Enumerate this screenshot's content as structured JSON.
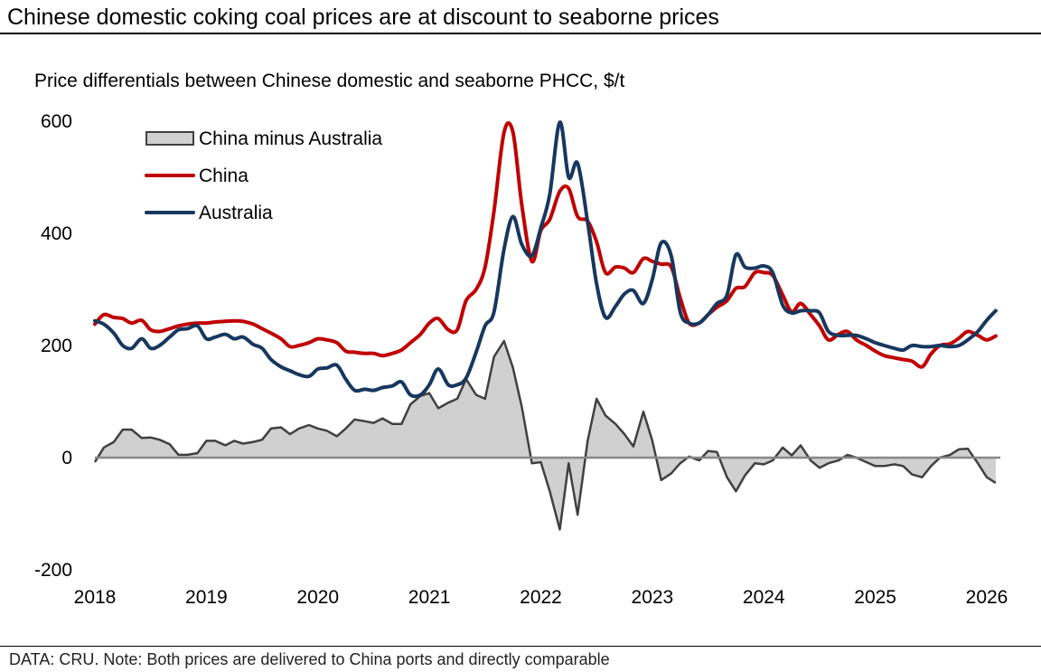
{
  "title": "Chinese domestic coking coal prices are at discount to seaborne prices",
  "footer": "DATA: CRU. Note: Both prices are delivered to China ports and directly comparable",
  "chart_data": {
    "type": "line",
    "subtitle": "Price differentials between Chinese domestic and seaborne PHCC, $/t",
    "xlabel": "",
    "ylabel": "$/t",
    "xlim": [
      2018,
      2026.2
    ],
    "ylim": [
      -200,
      600
    ],
    "yticks": [
      600,
      400,
      200,
      0,
      -200
    ],
    "xticks": [
      2018,
      2019,
      2020,
      2021,
      2022,
      2023,
      2024,
      2025,
      2026
    ],
    "grid": false,
    "legend_position": "top-left",
    "colors": {
      "china": "#c00000",
      "australia": "#17375e",
      "diff_fill": "#d0d0d0",
      "diff_line": "#404040",
      "zero_line": "#888888"
    },
    "series": [
      {
        "name": "China minus Australia",
        "kind": "area",
        "x": [
          2018.0,
          2018.08,
          2018.17,
          2018.25,
          2018.33,
          2018.42,
          2018.5,
          2018.58,
          2018.67,
          2018.75,
          2018.83,
          2018.92,
          2019.0,
          2019.08,
          2019.17,
          2019.25,
          2019.33,
          2019.42,
          2019.5,
          2019.58,
          2019.67,
          2019.75,
          2019.83,
          2019.92,
          2020.0,
          2020.08,
          2020.17,
          2020.25,
          2020.33,
          2020.42,
          2020.5,
          2020.58,
          2020.67,
          2020.75,
          2020.83,
          2020.92,
          2021.0,
          2021.08,
          2021.17,
          2021.25,
          2021.33,
          2021.42,
          2021.5,
          2021.58,
          2021.67,
          2021.75,
          2021.83,
          2021.92,
          2022.0,
          2022.08,
          2022.17,
          2022.25,
          2022.33,
          2022.42,
          2022.5,
          2022.58,
          2022.67,
          2022.75,
          2022.83,
          2022.92,
          2023.0,
          2023.08,
          2023.17,
          2023.25,
          2023.33,
          2023.42,
          2023.5,
          2023.58,
          2023.67,
          2023.75,
          2023.83,
          2023.92,
          2024.0,
          2024.08,
          2024.17,
          2024.25,
          2024.33,
          2024.42,
          2024.5,
          2024.58,
          2024.67,
          2024.75,
          2024.83,
          2024.92,
          2025.0,
          2025.08,
          2025.17,
          2025.25,
          2025.33,
          2025.42,
          2025.5,
          2025.58,
          2025.67,
          2025.75,
          2025.83,
          2025.92,
          2026.0,
          2026.08
        ],
        "values": [
          -8,
          18,
          28,
          50,
          50,
          35,
          36,
          32,
          24,
          5,
          5,
          8,
          30,
          30,
          22,
          30,
          25,
          28,
          32,
          52,
          54,
          42,
          52,
          58,
          52,
          48,
          38,
          52,
          68,
          65,
          62,
          70,
          60,
          60,
          95,
          110,
          115,
          88,
          98,
          105,
          140,
          112,
          105,
          180,
          208,
          160,
          90,
          -10,
          -8,
          -60,
          -128,
          -10,
          -102,
          30,
          105,
          75,
          60,
          42,
          20,
          82,
          30,
          -40,
          -28,
          -10,
          2,
          -5,
          12,
          10,
          -35,
          -60,
          -32,
          -10,
          -12,
          -5,
          18,
          4,
          22,
          -5,
          -18,
          -10,
          -5,
          5,
          0,
          -8,
          -15,
          -15,
          -12,
          -15,
          -30,
          -35,
          -15,
          0,
          5,
          15,
          16,
          -10,
          -35,
          -45
        ]
      },
      {
        "name": "China",
        "kind": "line",
        "x": [
          2018.0,
          2018.08,
          2018.17,
          2018.25,
          2018.33,
          2018.42,
          2018.5,
          2018.58,
          2018.67,
          2018.75,
          2018.83,
          2018.92,
          2019.0,
          2019.08,
          2019.17,
          2019.25,
          2019.33,
          2019.42,
          2019.5,
          2019.58,
          2019.67,
          2019.75,
          2019.83,
          2019.92,
          2020.0,
          2020.08,
          2020.17,
          2020.25,
          2020.33,
          2020.42,
          2020.5,
          2020.58,
          2020.67,
          2020.75,
          2020.83,
          2020.92,
          2021.0,
          2021.08,
          2021.17,
          2021.25,
          2021.33,
          2021.42,
          2021.5,
          2021.58,
          2021.67,
          2021.75,
          2021.83,
          2021.92,
          2022.0,
          2022.08,
          2022.17,
          2022.25,
          2022.33,
          2022.42,
          2022.5,
          2022.58,
          2022.67,
          2022.75,
          2022.83,
          2022.92,
          2023.0,
          2023.08,
          2023.17,
          2023.25,
          2023.33,
          2023.42,
          2023.5,
          2023.58,
          2023.67,
          2023.75,
          2023.83,
          2023.92,
          2024.0,
          2024.08,
          2024.17,
          2024.25,
          2024.33,
          2024.42,
          2024.5,
          2024.58,
          2024.67,
          2024.75,
          2024.83,
          2024.92,
          2025.0,
          2025.08,
          2025.17,
          2025.25,
          2025.33,
          2025.42,
          2025.5,
          2025.58,
          2025.67,
          2025.75,
          2025.83,
          2025.92,
          2026.0,
          2026.08
        ],
        "values": [
          238,
          255,
          250,
          248,
          240,
          245,
          228,
          225,
          230,
          235,
          238,
          240,
          240,
          242,
          243,
          244,
          243,
          238,
          230,
          222,
          212,
          198,
          200,
          205,
          212,
          210,
          205,
          190,
          188,
          186,
          186,
          182,
          186,
          192,
          205,
          220,
          240,
          248,
          228,
          228,
          280,
          300,
          340,
          440,
          580,
          580,
          450,
          350,
          405,
          425,
          475,
          480,
          430,
          422,
          385,
          330,
          340,
          338,
          330,
          355,
          350,
          345,
          340,
          285,
          240,
          240,
          255,
          268,
          280,
          302,
          305,
          330,
          330,
          325,
          290,
          260,
          275,
          255,
          235,
          210,
          220,
          225,
          210,
          200,
          190,
          182,
          178,
          175,
          172,
          162,
          185,
          200,
          203,
          213,
          225,
          218,
          210,
          217
        ]
      },
      {
        "name": "Australia",
        "kind": "line",
        "x": [
          2018.0,
          2018.08,
          2018.17,
          2018.25,
          2018.33,
          2018.42,
          2018.5,
          2018.58,
          2018.67,
          2018.75,
          2018.83,
          2018.92,
          2019.0,
          2019.08,
          2019.17,
          2019.25,
          2019.33,
          2019.42,
          2019.5,
          2019.58,
          2019.67,
          2019.75,
          2019.83,
          2019.92,
          2020.0,
          2020.08,
          2020.17,
          2020.25,
          2020.33,
          2020.42,
          2020.5,
          2020.58,
          2020.67,
          2020.75,
          2020.83,
          2020.92,
          2021.0,
          2021.08,
          2021.17,
          2021.25,
          2021.33,
          2021.42,
          2021.5,
          2021.58,
          2021.67,
          2021.75,
          2021.83,
          2021.92,
          2022.0,
          2022.08,
          2022.17,
          2022.25,
          2022.33,
          2022.42,
          2022.5,
          2022.58,
          2022.67,
          2022.75,
          2022.83,
          2022.92,
          2023.0,
          2023.08,
          2023.17,
          2023.25,
          2023.33,
          2023.42,
          2023.5,
          2023.58,
          2023.67,
          2023.75,
          2023.83,
          2023.92,
          2024.0,
          2024.08,
          2024.17,
          2024.25,
          2024.33,
          2024.42,
          2024.5,
          2024.58,
          2024.67,
          2024.75,
          2024.83,
          2024.92,
          2025.0,
          2025.08,
          2025.17,
          2025.25,
          2025.33,
          2025.42,
          2025.5,
          2025.58,
          2025.67,
          2025.75,
          2025.83,
          2025.92,
          2026.0,
          2026.08
        ],
        "values": [
          244,
          238,
          222,
          200,
          195,
          212,
          195,
          200,
          215,
          228,
          230,
          235,
          212,
          215,
          220,
          212,
          215,
          202,
          195,
          175,
          162,
          155,
          148,
          145,
          158,
          160,
          165,
          140,
          120,
          122,
          120,
          125,
          128,
          135,
          112,
          112,
          130,
          158,
          130,
          130,
          142,
          188,
          235,
          260,
          372,
          430,
          380,
          360,
          410,
          470,
          598,
          500,
          525,
          420,
          310,
          250,
          270,
          292,
          298,
          275,
          318,
          383,
          360,
          260,
          240,
          240,
          255,
          275,
          290,
          362,
          340,
          338,
          342,
          330,
          272,
          258,
          262,
          262,
          258,
          225,
          218,
          218,
          218,
          212,
          205,
          200,
          195,
          192,
          200,
          198,
          198,
          200,
          198,
          200,
          210,
          225,
          245,
          262
        ]
      }
    ]
  }
}
